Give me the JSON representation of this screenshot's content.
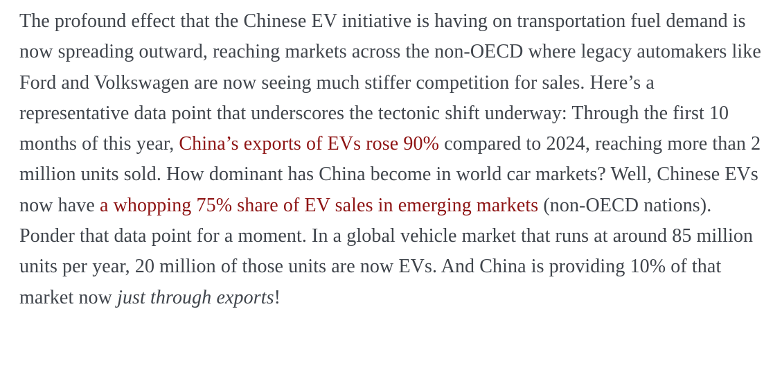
{
  "colors": {
    "background": "#ffffff",
    "body_text": "#3f444b",
    "link": "#8e1414"
  },
  "article": {
    "paragraph": {
      "runs": [
        {
          "style": "normal",
          "text": "The profound effect that the Chinese EV initiative is having on transportation fuel demand is now spreading outward, reaching markets across the non-OECD where legacy automakers like Ford and Volkswagen are now seeing much stiffer competition for sales. Here’s a representative data point that underscores the tectonic shift underway: Through the first 10 months of this year, "
        },
        {
          "style": "link",
          "text": "China’s exports of EVs rose 90%"
        },
        {
          "style": "normal",
          "text": " compared to 2024, reaching more than 2 million units sold. How dominant has China become in world car markets? Well, Chinese EVs now have "
        },
        {
          "style": "link",
          "text": "a whopping 75% share of EV sales in emerging markets"
        },
        {
          "style": "normal",
          "text": " (non-OECD nations). Ponder that data point for a moment. In a global vehicle market that runs at around 85 million units per year, 20 million of those units are now EVs. And China is providing 10% of that market now "
        },
        {
          "style": "italic",
          "text": "just through exports"
        },
        {
          "style": "normal",
          "text": "!"
        }
      ]
    }
  }
}
